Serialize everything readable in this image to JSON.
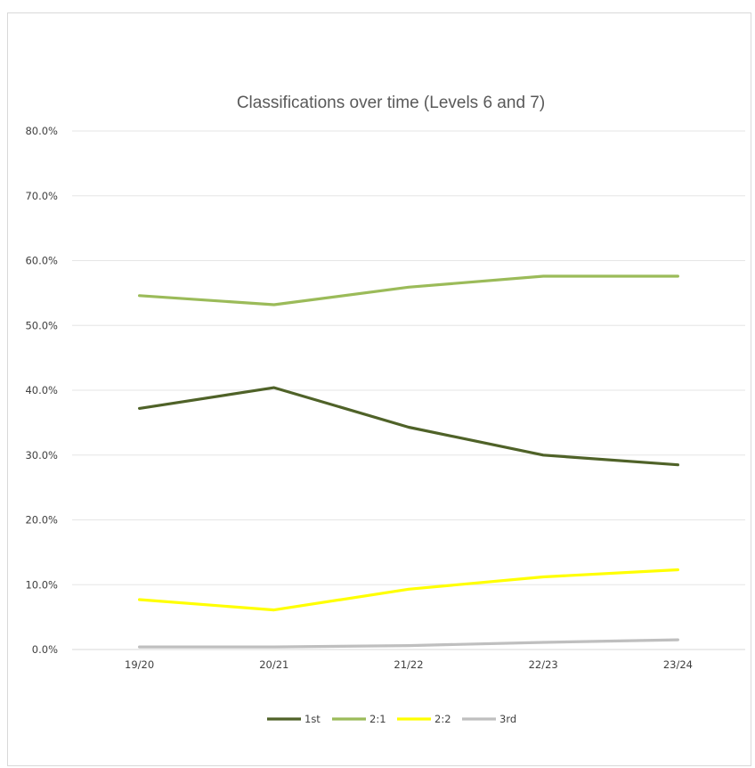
{
  "chart_data": {
    "type": "line",
    "title": "Classifications over time (Levels 6 and 7)",
    "xlabel": "",
    "ylabel": "",
    "categories": [
      "19/20",
      "20/21",
      "21/22",
      "22/23",
      "23/24"
    ],
    "ylim": [
      0,
      80
    ],
    "yticks": [
      0,
      10,
      20,
      30,
      40,
      50,
      60,
      70,
      80
    ],
    "ytick_labels": [
      "0.0%",
      "10.0%",
      "20.0%",
      "30.0%",
      "40.0%",
      "50.0%",
      "60.0%",
      "70.0%",
      "80.0%"
    ],
    "grid": true,
    "legend_position": "bottom",
    "series": [
      {
        "name": "1st",
        "color": "#4f6228",
        "values": [
          37.2,
          40.4,
          34.3,
          30.0,
          28.5
        ]
      },
      {
        "name": "2:1",
        "color": "#9bbb59",
        "values": [
          54.6,
          53.2,
          55.9,
          57.6,
          57.6
        ]
      },
      {
        "name": "2:2",
        "color": "#ffff00",
        "values": [
          7.7,
          6.1,
          9.3,
          11.2,
          12.3
        ]
      },
      {
        "name": "3rd",
        "color": "#bfbfbf",
        "values": [
          0.4,
          0.4,
          0.6,
          1.1,
          1.5
        ]
      }
    ]
  }
}
